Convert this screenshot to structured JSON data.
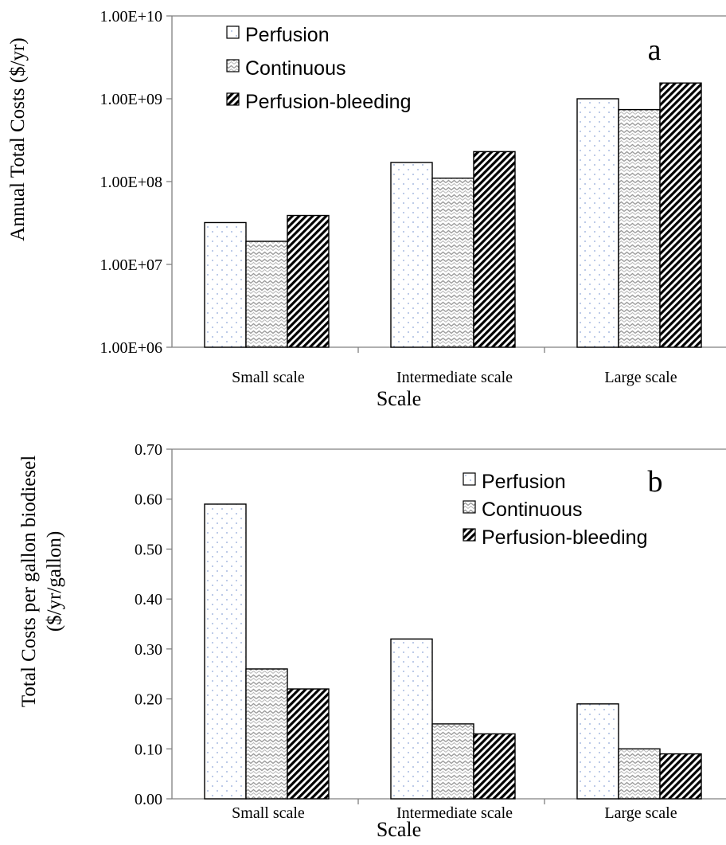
{
  "chart_data": [
    {
      "type": "bar",
      "panel_label": "a",
      "categories": [
        "Small scale",
        "Intermediate scale",
        "Large scale"
      ],
      "series": [
        {
          "name": "Perfusion",
          "values": [
            32000000,
            170000000,
            1000000000
          ]
        },
        {
          "name": "Continuous",
          "values": [
            19000000,
            110000000,
            740000000
          ]
        },
        {
          "name": "Perfusion-bleeding",
          "values": [
            39000000,
            230000000,
            1550000000
          ]
        }
      ],
      "xlabel": "Scale",
      "ylabel": "Annual Total Costs  ($/yr)",
      "yscale": "log",
      "ylim": [
        1000000,
        10000000000
      ],
      "yticks": [
        1000000,
        10000000,
        100000000,
        1000000000,
        10000000000
      ],
      "ytick_labels": [
        "1.00E+06",
        "1.00E+07",
        "1.00E+08",
        "1.00E+09",
        "1.00E+10"
      ],
      "grid": false,
      "legend_position": "top-left"
    },
    {
      "type": "bar",
      "panel_label": "b",
      "categories": [
        "Small scale",
        "Intermediate scale",
        "Large scale"
      ],
      "series": [
        {
          "name": "Perfusion",
          "values": [
            0.59,
            0.32,
            0.19
          ]
        },
        {
          "name": "Continuous",
          "values": [
            0.26,
            0.15,
            0.1
          ]
        },
        {
          "name": "Perfusion-bleeding",
          "values": [
            0.22,
            0.13,
            0.09
          ]
        }
      ],
      "xlabel": "Scale",
      "ylabel_lines": [
        "Total Costs per gallon biodiesel",
        "($/yr/gallon)"
      ],
      "yscale": "linear",
      "ylim": [
        0,
        0.7
      ],
      "yticks": [
        0,
        0.1,
        0.2,
        0.3,
        0.4,
        0.5,
        0.6,
        0.7
      ],
      "ytick_labels": [
        "0.00",
        "0.10",
        "0.20",
        "0.30",
        "0.40",
        "0.50",
        "0.60",
        "0.70"
      ],
      "grid": false,
      "legend_position": "top-right"
    }
  ],
  "colors": {
    "axis": "#808080",
    "bar_edge": "#000000",
    "dot": "#8ea6d8",
    "wave": "#9a9a9a",
    "hatch": "#000000"
  }
}
